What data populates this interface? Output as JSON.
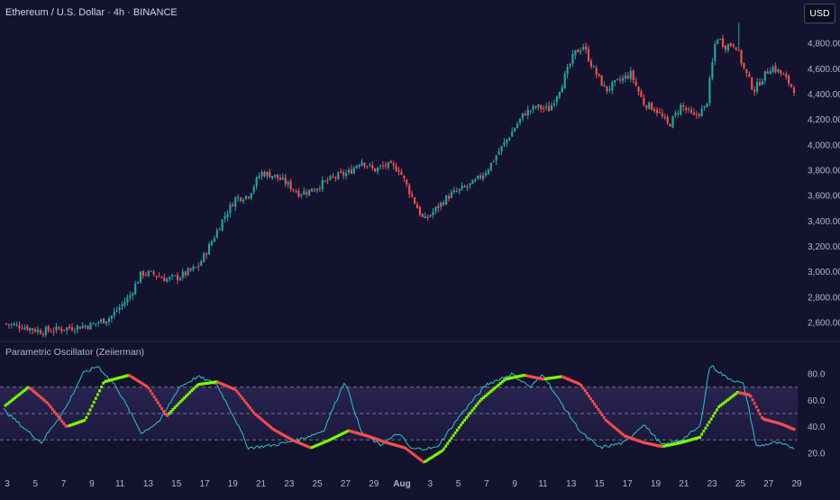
{
  "header": {
    "symbol_title": "Ethereum / U.S. Dollar · 4h · BINANCE",
    "currency_label": "USD"
  },
  "indicator": {
    "title": "Parametric Oscillator (Zeiierman)"
  },
  "colors": {
    "background": "#131330",
    "candle_up": "#26a69a",
    "candle_down": "#ef5350",
    "osc_rising": "#7cfc00",
    "osc_falling": "#ff4d4d",
    "signal_line": "#2ec4c4",
    "band_dash": "#8a8aa0",
    "zone_fill": "#3a2f6a"
  },
  "chart_data": [
    {
      "type": "candlestick",
      "title": "Ethereum / U.S. Dollar · 4h · BINANCE",
      "y_axis": {
        "side": "right",
        "ticks": [
          2600,
          2800,
          3000,
          3200,
          3400,
          3600,
          3800,
          4000,
          4200,
          4400,
          4600,
          4800
        ],
        "tick_labels": [
          "2,600.00",
          "2,800.00",
          "3,000.00",
          "3,200.00",
          "3,400.00",
          "3,600.00",
          "3,800.00",
          "4,000.00",
          "4,200.00",
          "4,400.00",
          "4,600.00",
          "4,800.00"
        ],
        "range": [
          2500,
          5000
        ]
      },
      "x_axis": {
        "tick_labels": [
          "3",
          "5",
          "7",
          "9",
          "11",
          "13",
          "15",
          "17",
          "19",
          "21",
          "23",
          "25",
          "27",
          "29",
          "Aug",
          "3",
          "5",
          "7",
          "9",
          "11",
          "13",
          "15",
          "17",
          "19",
          "21",
          "23",
          "25",
          "27",
          "29"
        ]
      },
      "close_path": [
        {
          "t": 0,
          "v": 2590
        },
        {
          "t": 1.5,
          "v": 2570
        },
        {
          "t": 3,
          "v": 2530
        },
        {
          "t": 5,
          "v": 2555
        },
        {
          "t": 7,
          "v": 2580
        },
        {
          "t": 8.5,
          "v": 2640
        },
        {
          "t": 10,
          "v": 2800
        },
        {
          "t": 11,
          "v": 2990
        },
        {
          "t": 12,
          "v": 2980
        },
        {
          "t": 13,
          "v": 2940
        },
        {
          "t": 14,
          "v": 2960
        },
        {
          "t": 15.5,
          "v": 3040
        },
        {
          "t": 16.5,
          "v": 3220
        },
        {
          "t": 17.5,
          "v": 3420
        },
        {
          "t": 18.5,
          "v": 3580
        },
        {
          "t": 19.5,
          "v": 3600
        },
        {
          "t": 20.5,
          "v": 3780
        },
        {
          "t": 21.5,
          "v": 3760
        },
        {
          "t": 22.5,
          "v": 3700
        },
        {
          "t": 23.5,
          "v": 3620
        },
        {
          "t": 24.5,
          "v": 3640
        },
        {
          "t": 25.5,
          "v": 3700
        },
        {
          "t": 26.5,
          "v": 3750
        },
        {
          "t": 27.5,
          "v": 3780
        },
        {
          "t": 28.5,
          "v": 3880
        },
        {
          "t": 29.5,
          "v": 3800
        },
        {
          "t": 30.5,
          "v": 3840
        },
        {
          "t": 31.5,
          "v": 3810
        },
        {
          "t": 32.5,
          "v": 3600
        },
        {
          "t": 33.5,
          "v": 3400
        },
        {
          "t": 34.5,
          "v": 3500
        },
        {
          "t": 35.5,
          "v": 3600
        },
        {
          "t": 36.5,
          "v": 3650
        },
        {
          "t": 37.5,
          "v": 3700
        },
        {
          "t": 38.5,
          "v": 3800
        },
        {
          "t": 39.5,
          "v": 3950
        },
        {
          "t": 40.5,
          "v": 4100
        },
        {
          "t": 41.5,
          "v": 4250
        },
        {
          "t": 42.5,
          "v": 4300
        },
        {
          "t": 43.5,
          "v": 4280
        },
        {
          "t": 44.5,
          "v": 4480
        },
        {
          "t": 45.5,
          "v": 4720
        },
        {
          "t": 46.2,
          "v": 4780
        },
        {
          "t": 47,
          "v": 4600
        },
        {
          "t": 48,
          "v": 4430
        },
        {
          "t": 49,
          "v": 4500
        },
        {
          "t": 50,
          "v": 4560
        },
        {
          "t": 51,
          "v": 4330
        },
        {
          "t": 52,
          "v": 4280
        },
        {
          "t": 53,
          "v": 4150
        },
        {
          "t": 54,
          "v": 4310
        },
        {
          "t": 55,
          "v": 4220
        },
        {
          "t": 56,
          "v": 4300
        },
        {
          "t": 56.8,
          "v": 4860
        },
        {
          "t": 57.5,
          "v": 4780
        },
        {
          "t": 58.3,
          "v": 4800
        },
        {
          "t": 59,
          "v": 4600
        },
        {
          "t": 59.8,
          "v": 4430
        },
        {
          "t": 60.5,
          "v": 4530
        },
        {
          "t": 61.2,
          "v": 4620
        },
        {
          "t": 62,
          "v": 4560
        },
        {
          "t": 63,
          "v": 4440
        }
      ]
    },
    {
      "type": "line",
      "title": "Parametric Oscillator (Zeiierman)",
      "y_axis": {
        "side": "right",
        "ticks": [
          20,
          40,
          60,
          80
        ],
        "tick_labels": [
          "20.0",
          "40.0",
          "60.0",
          "80.0"
        ],
        "range": [
          7,
          93
        ]
      },
      "bands": [
        70,
        50,
        30
      ],
      "grid": false,
      "series": [
        {
          "role": "oscillator",
          "path": [
            {
              "t": 0,
              "v": 55
            },
            {
              "t": 2,
              "v": 70
            },
            {
              "t": 3.5,
              "v": 58
            },
            {
              "t": 5,
              "v": 40
            },
            {
              "t": 6.5,
              "v": 45
            },
            {
              "t": 8,
              "v": 74
            },
            {
              "t": 10,
              "v": 79
            },
            {
              "t": 11.5,
              "v": 70
            },
            {
              "t": 13,
              "v": 48
            },
            {
              "t": 14,
              "v": 58
            },
            {
              "t": 15.5,
              "v": 72
            },
            {
              "t": 17,
              "v": 74
            },
            {
              "t": 18.5,
              "v": 68
            },
            {
              "t": 20,
              "v": 50
            },
            {
              "t": 21.5,
              "v": 38
            },
            {
              "t": 23,
              "v": 30
            },
            {
              "t": 24.5,
              "v": 24
            },
            {
              "t": 26,
              "v": 30
            },
            {
              "t": 27.5,
              "v": 37
            },
            {
              "t": 29,
              "v": 33
            },
            {
              "t": 30.5,
              "v": 28
            },
            {
              "t": 32,
              "v": 24
            },
            {
              "t": 33.5,
              "v": 13
            },
            {
              "t": 35,
              "v": 22
            },
            {
              "t": 36.5,
              "v": 42
            },
            {
              "t": 38,
              "v": 60
            },
            {
              "t": 40,
              "v": 76
            },
            {
              "t": 41.5,
              "v": 79
            },
            {
              "t": 43,
              "v": 76
            },
            {
              "t": 44.5,
              "v": 78
            },
            {
              "t": 46,
              "v": 72
            },
            {
              "t": 48,
              "v": 45
            },
            {
              "t": 49.5,
              "v": 33
            },
            {
              "t": 51,
              "v": 28
            },
            {
              "t": 52.5,
              "v": 25
            },
            {
              "t": 54,
              "v": 28
            },
            {
              "t": 55.5,
              "v": 32
            },
            {
              "t": 57,
              "v": 55
            },
            {
              "t": 58.5,
              "v": 66
            },
            {
              "t": 59.5,
              "v": 64
            },
            {
              "t": 60.5,
              "v": 46
            },
            {
              "t": 62,
              "v": 42
            },
            {
              "t": 63,
              "v": 38
            }
          ]
        },
        {
          "role": "signal",
          "path": [
            {
              "t": 0,
              "v": 53
            },
            {
              "t": 1.5,
              "v": 40
            },
            {
              "t": 3,
              "v": 28
            },
            {
              "t": 5,
              "v": 55
            },
            {
              "t": 6.3,
              "v": 80
            },
            {
              "t": 7.5,
              "v": 86
            },
            {
              "t": 9,
              "v": 70
            },
            {
              "t": 11,
              "v": 35
            },
            {
              "t": 12.5,
              "v": 45
            },
            {
              "t": 14,
              "v": 70
            },
            {
              "t": 15.5,
              "v": 78
            },
            {
              "t": 17,
              "v": 72
            },
            {
              "t": 18.5,
              "v": 45
            },
            {
              "t": 19.5,
              "v": 24
            },
            {
              "t": 21.5,
              "v": 26
            },
            {
              "t": 23.5,
              "v": 30
            },
            {
              "t": 25.5,
              "v": 37
            },
            {
              "t": 27.2,
              "v": 75
            },
            {
              "t": 28.5,
              "v": 36
            },
            {
              "t": 30,
              "v": 26
            },
            {
              "t": 31.5,
              "v": 35
            },
            {
              "t": 32.5,
              "v": 23
            },
            {
              "t": 34.5,
              "v": 24
            },
            {
              "t": 36.5,
              "v": 50
            },
            {
              "t": 38.5,
              "v": 72
            },
            {
              "t": 40.5,
              "v": 80
            },
            {
              "t": 42,
              "v": 70
            },
            {
              "t": 43,
              "v": 80
            },
            {
              "t": 44,
              "v": 64
            },
            {
              "t": 46,
              "v": 36
            },
            {
              "t": 47.5,
              "v": 24
            },
            {
              "t": 49.5,
              "v": 28
            },
            {
              "t": 51,
              "v": 42
            },
            {
              "t": 52.5,
              "v": 26
            },
            {
              "t": 54,
              "v": 30
            },
            {
              "t": 55.5,
              "v": 40
            },
            {
              "t": 56.3,
              "v": 87
            },
            {
              "t": 57.5,
              "v": 78
            },
            {
              "t": 59,
              "v": 72
            },
            {
              "t": 60,
              "v": 25
            },
            {
              "t": 61.5,
              "v": 28
            },
            {
              "t": 63,
              "v": 24
            }
          ]
        }
      ]
    }
  ]
}
